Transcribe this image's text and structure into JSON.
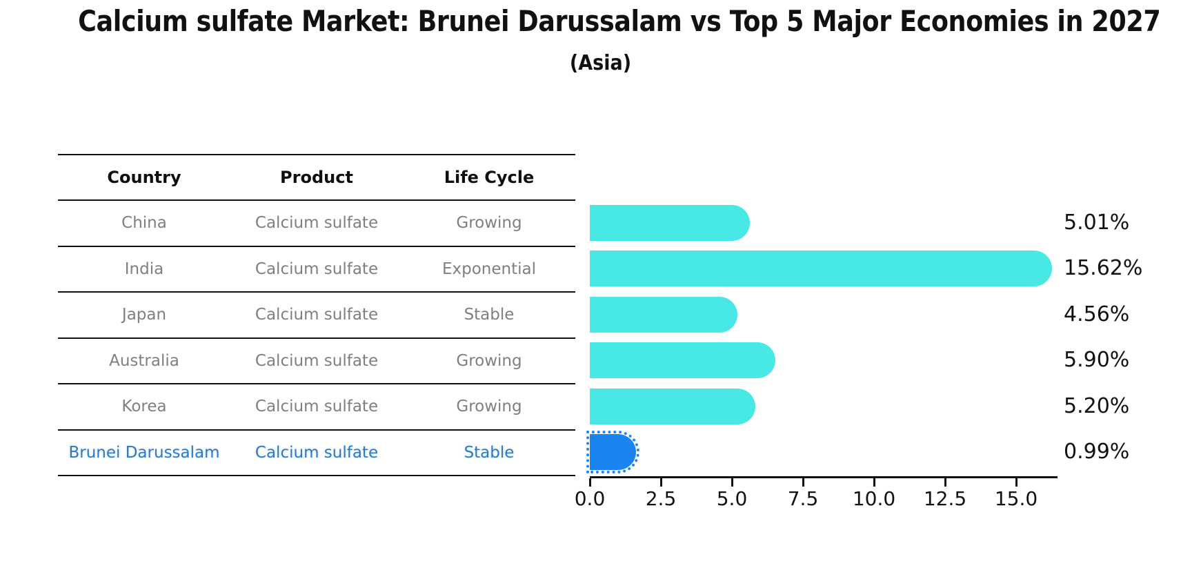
{
  "title": "Calcium sulfate Market: Brunei Darussalam vs Top 5 Major Economies in 2027",
  "subtitle": "(Asia)",
  "table": {
    "headers": [
      "Country",
      "Product",
      "Life Cycle"
    ],
    "rows": [
      {
        "country": "China",
        "product": "Calcium sulfate",
        "life_cycle": "Growing",
        "highlight": false
      },
      {
        "country": "India",
        "product": "Calcium sulfate",
        "life_cycle": "Exponential",
        "highlight": false
      },
      {
        "country": "Japan",
        "product": "Calcium sulfate",
        "life_cycle": "Stable",
        "highlight": false
      },
      {
        "country": "Australia",
        "product": "Calcium sulfate",
        "life_cycle": "Growing",
        "highlight": false
      },
      {
        "country": "Korea",
        "product": "Calcium sulfate",
        "life_cycle": "Growing",
        "highlight": false
      },
      {
        "country": "Brunei Darussalam",
        "product": "Calcium sulfate",
        "life_cycle": "Stable",
        "highlight": true
      }
    ]
  },
  "chart_data": {
    "type": "bar",
    "orientation": "horizontal",
    "title": "Calcium sulfate Market: Brunei Darussalam vs Top 5 Major Economies in 2027",
    "subtitle": "(Asia)",
    "categories": [
      "China",
      "India",
      "Japan",
      "Australia",
      "Korea",
      "Brunei Darussalam"
    ],
    "values": [
      5.01,
      15.62,
      4.56,
      5.9,
      5.2,
      0.99
    ],
    "value_labels": [
      "5.01%",
      "15.62%",
      "4.56%",
      "5.90%",
      "5.20%",
      "0.99%"
    ],
    "x_ticks": [
      0.0,
      2.5,
      5.0,
      7.5,
      10.0,
      12.5,
      15.0
    ],
    "x_tick_labels": [
      "0.0",
      "2.5",
      "5.0",
      "7.5",
      "10.0",
      "12.5",
      "15.0"
    ],
    "xlim": [
      0,
      16.5
    ],
    "xlabel": "",
    "ylabel": "",
    "grid": false,
    "legend": false,
    "bar_color": "#48e9e4",
    "highlight_color": "#1a84f0",
    "highlight_index": 5
  },
  "colors": {
    "bar_cyan": "#48e9e4",
    "bar_blue": "#1a84f0",
    "table_text_gray": "#7f7f7f",
    "highlight_text_blue": "#2b7bc9",
    "line_black": "#0f0f0f"
  }
}
